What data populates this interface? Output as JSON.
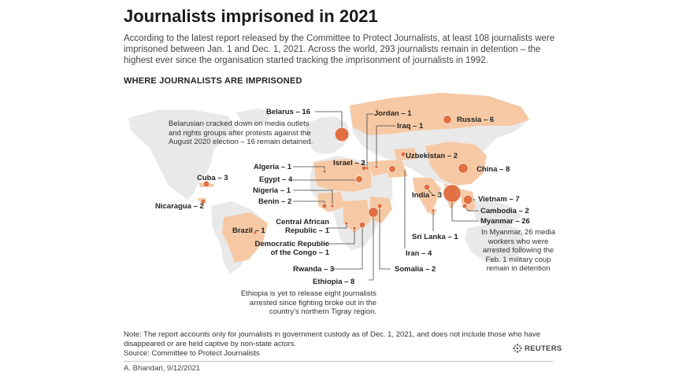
{
  "title": "Journalists imprisoned in 2021",
  "intro": "According to the latest report released by the Committee to Protect Journalists, at least 108 journalists were imprisoned between Jan. 1 and Dec. 1, 2021. Across the world, 293 journalists remain in detention  – the highest ever since the organisation started tracking the imprisonment of journalists in 1992.",
  "subhead": "WHERE JOURNALISTS ARE IMPRISONED",
  "countries": [
    {
      "id": "belarus",
      "label": "Belarus – 16",
      "count": 16
    },
    {
      "id": "jordan",
      "label": "Jordan – 1",
      "count": 1
    },
    {
      "id": "iraq",
      "label": "Iraq – 1",
      "count": 1
    },
    {
      "id": "russia",
      "label": "Russia – 6",
      "count": 6
    },
    {
      "id": "algeria",
      "label": "Algeria – 1",
      "count": 1
    },
    {
      "id": "israel",
      "label": "Israel – 2",
      "count": 2
    },
    {
      "id": "uzbekistan",
      "label": "Uzbekistan – 2",
      "count": 2
    },
    {
      "id": "egypt",
      "label": "Egypt – 4",
      "count": 4
    },
    {
      "id": "china",
      "label": "China – 8",
      "count": 8
    },
    {
      "id": "cuba",
      "label": "Cuba – 3",
      "count": 3
    },
    {
      "id": "nigeria",
      "label": "Nigeria – 1",
      "count": 1
    },
    {
      "id": "benin",
      "label": "Benin – 2",
      "count": 2
    },
    {
      "id": "india",
      "label": "India – 3",
      "count": 3
    },
    {
      "id": "vietnam",
      "label": "Vietnam – 7",
      "count": 7
    },
    {
      "id": "cambodia",
      "label": "Cambodia – 2",
      "count": 2
    },
    {
      "id": "myanmar",
      "label": "Myanmar – 26",
      "count": 26
    },
    {
      "id": "nicaragua",
      "label": "Nicaragua – 2",
      "count": 2
    },
    {
      "id": "car",
      "label": "Central African Republic – 1",
      "count": 1
    },
    {
      "id": "brazil",
      "label": "Brazil – 1",
      "count": 1
    },
    {
      "id": "drc",
      "label": "Democratic Republic of the Congo – 1",
      "count": 1
    },
    {
      "id": "srilanka",
      "label": "Sri Lanka – 1",
      "count": 1
    },
    {
      "id": "iran",
      "label": "Iran – 4",
      "count": 4
    },
    {
      "id": "rwanda",
      "label": "Rwanda – 3",
      "count": 3
    },
    {
      "id": "somalia",
      "label": "Somalia – 2",
      "count": 2
    },
    {
      "id": "ethiopia",
      "label": "Ethiopia – 8",
      "count": 8
    }
  ],
  "label_lines": {
    "car_1": "Central African",
    "car_2": "Republic – 1",
    "drc_1": "Democratic Republic",
    "drc_2": "of the Congo – 1"
  },
  "notes": {
    "belarus": [
      "Belarusian cracked down on media outlets",
      "and rights groups after protests against the",
      "August 2020 election – 16 remain detained."
    ],
    "myanmar": [
      "In Myanmar, 26 media",
      "workers who were",
      "arrested following the",
      "Feb. 1 military coup",
      "remain in detention"
    ],
    "ethiopia": [
      "Ethiopia is yet to release eight journalists",
      "arrested since fighting broke out in the",
      "country’s northern Tigray region."
    ]
  },
  "footnote": "Note: The report accounts only for journalists in government custody as of Dec. 1, 2021, and does not include those who have disappeared or are held captive by non-state actors.",
  "source": "Source: Committee to Protect Journalists",
  "credit": "A. Bhandari, 9/12/2021",
  "brand": "REUTERS",
  "colors": {
    "highlight_land": "#f6c9a4",
    "other_land": "#e9e9e9",
    "bubble_fill": "#e0683a",
    "bubble_stroke": "#ffffff",
    "leader": "#444444"
  }
}
